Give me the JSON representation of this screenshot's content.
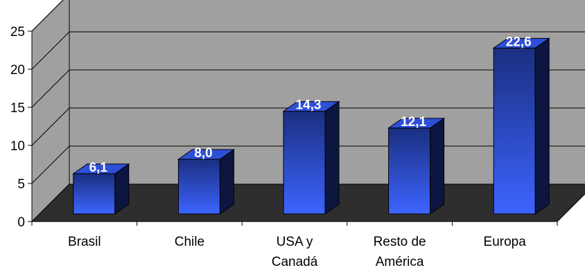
{
  "chart_data": {
    "type": "bar",
    "style": "3d-column",
    "categories": [
      [
        "Brasil"
      ],
      [
        "Chile"
      ],
      [
        "USA y",
        "Canadá"
      ],
      [
        "Resto de",
        "América"
      ],
      [
        "Europa"
      ]
    ],
    "values": [
      6.1,
      8.0,
      14.3,
      12.1,
      22.6
    ],
    "data_labels": [
      "6,1",
      "8,0",
      "14,3",
      "12,1",
      "22,6"
    ],
    "yticks": [
      0,
      5,
      10,
      15,
      20,
      25
    ],
    "ylim": [
      0,
      25
    ],
    "grid": true,
    "legend": "none",
    "colors": {
      "wall": "#a0a0a0",
      "floor": "#2e2e2e",
      "bar_front_top": "#1a2f80",
      "bar_front_bottom": "#3d64ff",
      "bar_side": "#0c1640",
      "bar_top": "#2e4fd8",
      "gridline": "#000000",
      "label": "#ffffff"
    }
  }
}
